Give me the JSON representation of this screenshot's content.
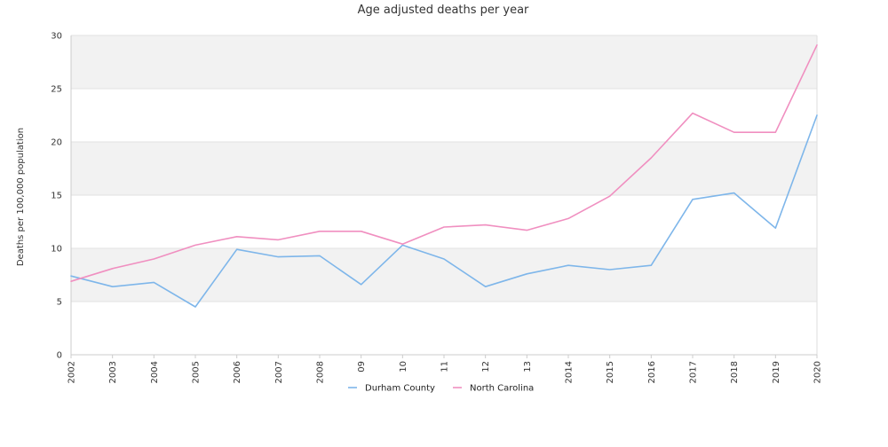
{
  "chart_data": {
    "type": "line",
    "title": "Age adjusted deaths per year",
    "xlabel": "",
    "ylabel": "Deaths per 100,000 population",
    "x": [
      "2002",
      "2003",
      "2004",
      "2005",
      "2006",
      "2007",
      "2008",
      "09",
      "10",
      "11",
      "12",
      "13",
      "2014",
      "2015",
      "2016",
      "2017",
      "2018",
      "2019",
      "2020"
    ],
    "ylim": [
      0,
      30
    ],
    "yticks": [
      0,
      5,
      10,
      15,
      20,
      25,
      30
    ],
    "grid": "alternating horizontal bands",
    "legend_position": "bottom",
    "series": [
      {
        "name": "Durham County",
        "color": "#7eb6ea",
        "values": [
          7.4,
          6.4,
          6.8,
          4.5,
          9.9,
          9.2,
          9.3,
          6.6,
          10.3,
          9.0,
          6.4,
          7.6,
          8.4,
          8.0,
          8.4,
          14.6,
          15.2,
          11.9,
          22.5
        ]
      },
      {
        "name": "North Carolina",
        "color": "#f08fc0",
        "values": [
          6.9,
          8.1,
          9.0,
          10.3,
          11.1,
          10.8,
          11.6,
          11.6,
          10.4,
          12.0,
          12.2,
          11.7,
          12.8,
          14.9,
          18.5,
          22.7,
          20.9,
          20.9,
          29.1
        ]
      }
    ]
  }
}
